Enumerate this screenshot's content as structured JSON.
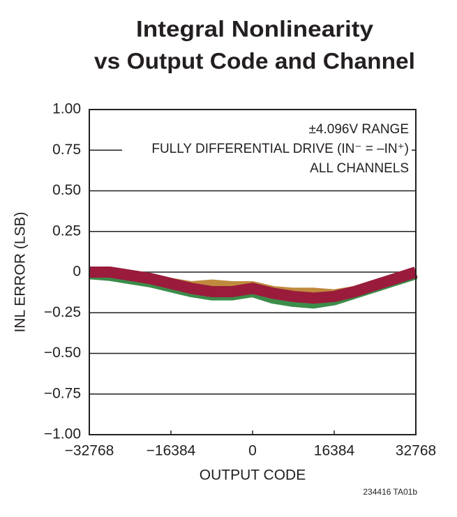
{
  "chart_data": {
    "type": "line",
    "title": [
      "Integral Nonlinearity",
      "vs Output Code and Channel"
    ],
    "xlabel": "OUTPUT CODE",
    "ylabel": "INL ERROR (LSB)",
    "footnote": "234416 TA01b",
    "annotations": [
      "±4.096V RANGE",
      "FULLY DIFFERENTIAL DRIVE (IN⁻ = –IN⁺)",
      "ALL CHANNELS"
    ],
    "x": [
      -32768,
      -28672,
      -24576,
      -20480,
      -16384,
      -12288,
      -8192,
      -4096,
      0,
      4096,
      8192,
      12288,
      16384,
      20480,
      24576,
      28672,
      32768
    ],
    "series": [
      {
        "color": "#3a5fb0",
        "values": [
          0.0,
          0.0,
          -0.02,
          -0.04,
          -0.07,
          -0.1,
          -0.12,
          -0.12,
          -0.1,
          -0.13,
          -0.15,
          -0.17,
          -0.15,
          -0.12,
          -0.08,
          -0.04,
          0.0
        ]
      },
      {
        "color": "#c08a3e",
        "values": [
          0.0,
          0.0,
          -0.02,
          -0.04,
          -0.07,
          -0.09,
          -0.08,
          -0.09,
          -0.09,
          -0.12,
          -0.13,
          -0.13,
          -0.14,
          -0.12,
          -0.08,
          -0.04,
          0.0
        ]
      },
      {
        "color": "#3c8c4a",
        "values": [
          -0.01,
          -0.02,
          -0.04,
          -0.06,
          -0.09,
          -0.12,
          -0.14,
          -0.14,
          -0.12,
          -0.16,
          -0.18,
          -0.19,
          -0.17,
          -0.13,
          -0.09,
          -0.05,
          -0.01
        ]
      },
      {
        "color": "#9a1b3c",
        "values": [
          0.0,
          0.0,
          -0.02,
          -0.04,
          -0.07,
          -0.1,
          -0.12,
          -0.12,
          -0.1,
          -0.13,
          -0.15,
          -0.16,
          -0.15,
          -0.12,
          -0.08,
          -0.04,
          0.0
        ]
      }
    ],
    "xlim": [
      -32768,
      32768
    ],
    "xticks": [
      {
        "value": -32768,
        "label": "−32768"
      },
      {
        "value": -16384,
        "label": "−16384"
      },
      0,
      16384,
      32768
    ],
    "ylim": [
      -1,
      1
    ],
    "yticks": [
      {
        "value": 1,
        "label": "1.00"
      },
      {
        "value": 0.75,
        "label": "0.75"
      },
      {
        "value": 0.5,
        "label": "0.50"
      },
      {
        "value": 0.25,
        "label": "0.25"
      },
      0,
      {
        "value": -0.25,
        "label": "−0.25"
      },
      {
        "value": -0.5,
        "label": "−0.50"
      },
      {
        "value": -0.75,
        "label": "−0.75"
      },
      {
        "value": -1,
        "label": "−1.00"
      }
    ],
    "grid": true
  }
}
